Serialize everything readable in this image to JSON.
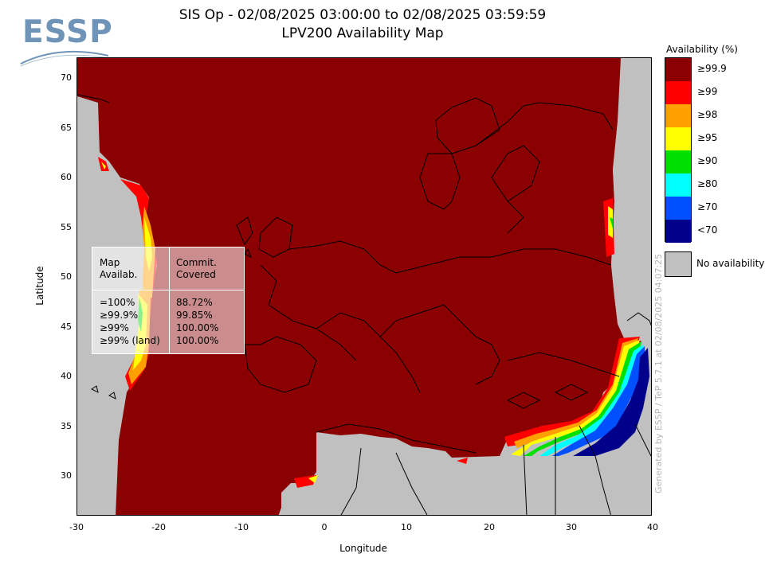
{
  "logo": {
    "text": "ESSP"
  },
  "title": {
    "line1": "SIS Op - 02/08/2025 03:00:00 to 02/08/2025 03:59:59",
    "line2": "LPV200 Availability Map"
  },
  "axes": {
    "x_label": "Longitude",
    "y_label": "Latitude",
    "x_ticks": [
      "-30",
      "-20",
      "-10",
      "0",
      "10",
      "20",
      "30",
      "40"
    ],
    "y_ticks": [
      "70",
      "65",
      "60",
      "55",
      "50",
      "45",
      "40",
      "35",
      "30"
    ],
    "x_range": [
      -30,
      40
    ],
    "y_range": [
      26,
      72
    ]
  },
  "legend": {
    "title": "Availability (%)",
    "items": [
      {
        "label": "≥99.9",
        "color": "#8b0000"
      },
      {
        "label": "≥99",
        "color": "#ff0000"
      },
      {
        "label": "≥98",
        "color": "#ffa000"
      },
      {
        "label": "≥95",
        "color": "#ffff00"
      },
      {
        "label": "≥90",
        "color": "#00e000"
      },
      {
        "label": "≥80",
        "color": "#00ffff"
      },
      {
        "label": "≥70",
        "color": "#0050ff"
      },
      {
        "label": "<70",
        "color": "#00008b"
      }
    ],
    "no_availability": {
      "label": "No availability",
      "color": "#c0c0c0"
    }
  },
  "stats_table": {
    "headers": {
      "col1": "Map\nAvailab.",
      "col2": "Commit.\nCovered"
    },
    "rows": [
      {
        "avail": "=100%",
        "covered": "88.72%"
      },
      {
        "avail": "≥99.9%",
        "covered": "99.85%"
      },
      {
        "avail": "≥99%",
        "covered": "100.00%"
      },
      {
        "avail": "≥99% (land)",
        "covered": "100.00%"
      }
    ]
  },
  "footer": {
    "generated": "Generated by ESSP / TeP 5.7.1 at 02/08/2025 04:07:25"
  }
}
